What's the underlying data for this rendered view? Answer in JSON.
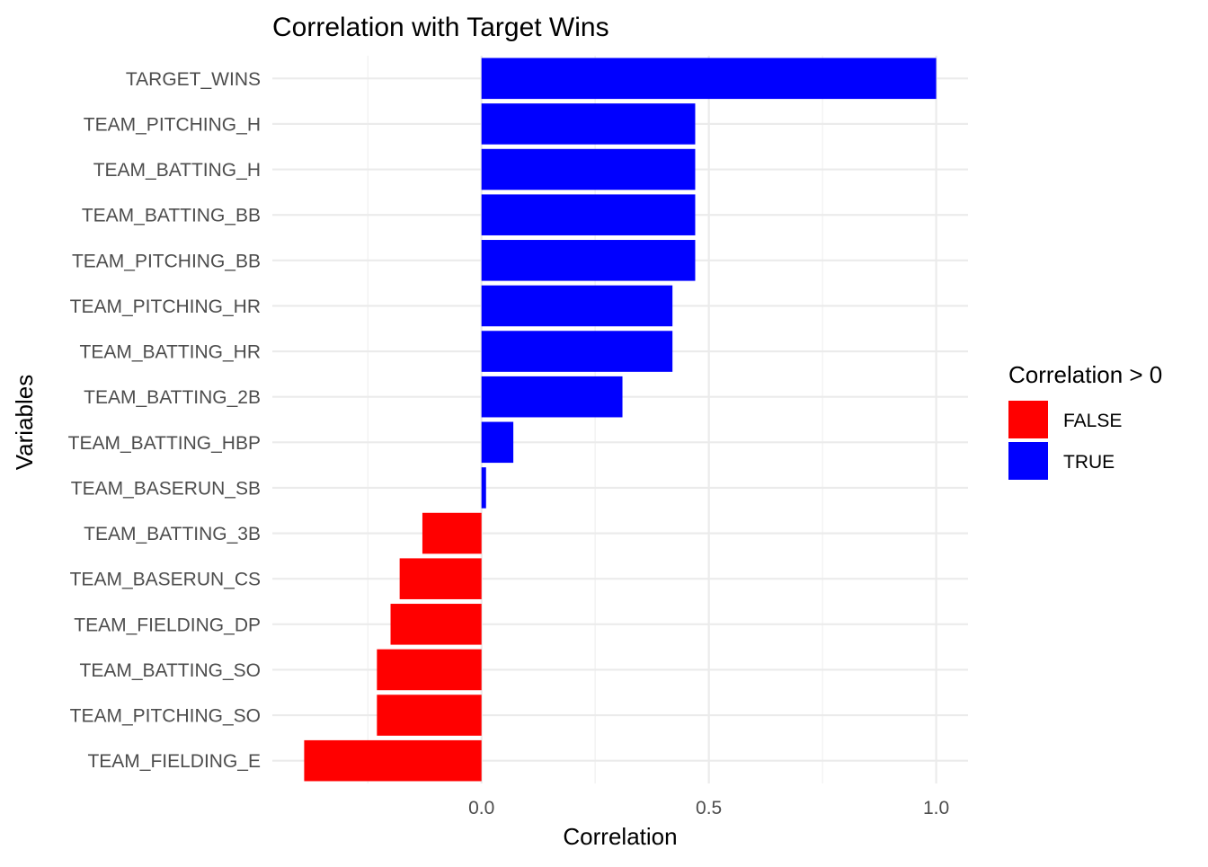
{
  "chart_data": {
    "type": "bar",
    "orientation": "horizontal",
    "title": "Correlation with Target Wins",
    "xlabel": "Correlation",
    "ylabel": "Variables",
    "xlim": [
      -0.46,
      1.07
    ],
    "xticks": [
      0.0,
      0.5,
      1.0
    ],
    "xtick_labels": [
      "0.0",
      "0.5",
      "1.0"
    ],
    "grid": true,
    "legend": {
      "title": "Correlation > 0",
      "position": "right",
      "items": [
        {
          "label": "FALSE",
          "color": "#ff0000"
        },
        {
          "label": "TRUE",
          "color": "#0000ff"
        }
      ]
    },
    "categories": [
      "TARGET_WINS",
      "TEAM_PITCHING_H",
      "TEAM_BATTING_H",
      "TEAM_BATTING_BB",
      "TEAM_PITCHING_BB",
      "TEAM_PITCHING_HR",
      "TEAM_BATTING_HR",
      "TEAM_BATTING_2B",
      "TEAM_BATTING_HBP",
      "TEAM_BASERUN_SB",
      "TEAM_BATTING_3B",
      "TEAM_BASERUN_CS",
      "TEAM_FIELDING_DP",
      "TEAM_BATTING_SO",
      "TEAM_PITCHING_SO",
      "TEAM_FIELDING_E"
    ],
    "values": [
      1.0,
      0.47,
      0.47,
      0.47,
      0.47,
      0.42,
      0.42,
      0.31,
      0.07,
      0.01,
      -0.13,
      -0.18,
      -0.2,
      -0.23,
      -0.23,
      -0.39
    ],
    "positive": [
      true,
      true,
      true,
      true,
      true,
      true,
      true,
      true,
      true,
      true,
      false,
      false,
      false,
      false,
      false,
      false
    ]
  }
}
